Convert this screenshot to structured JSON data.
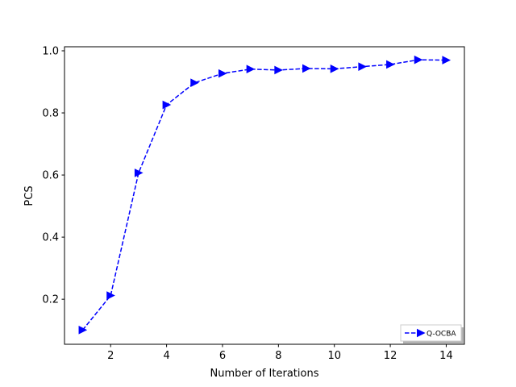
{
  "chart_data": {
    "type": "line",
    "title": "",
    "xlabel": "Number of Iterations",
    "ylabel": "PCS",
    "xlim": [
      0.35,
      14.65
    ],
    "ylim": [
      0.055,
      1.013
    ],
    "xticks": [
      2,
      4,
      6,
      8,
      10,
      12,
      14
    ],
    "yticks": [
      0.2,
      0.4,
      0.6,
      0.8,
      1.0
    ],
    "ytick_labels": [
      "0.2",
      "0.4",
      "0.6",
      "0.8",
      "1.0"
    ],
    "grid": false,
    "legend_position": "lower-right",
    "series": [
      {
        "name": "Q-OCBA",
        "color": "#0000ff",
        "line_style": "dashed",
        "marker": "triangle-right",
        "x": [
          1,
          2,
          3,
          4,
          5,
          6,
          7,
          8,
          9,
          10,
          11,
          12,
          13,
          14
        ],
        "y": [
          0.101,
          0.212,
          0.607,
          0.826,
          0.897,
          0.927,
          0.941,
          0.938,
          0.943,
          0.942,
          0.949,
          0.956,
          0.971,
          0.97
        ]
      }
    ]
  }
}
